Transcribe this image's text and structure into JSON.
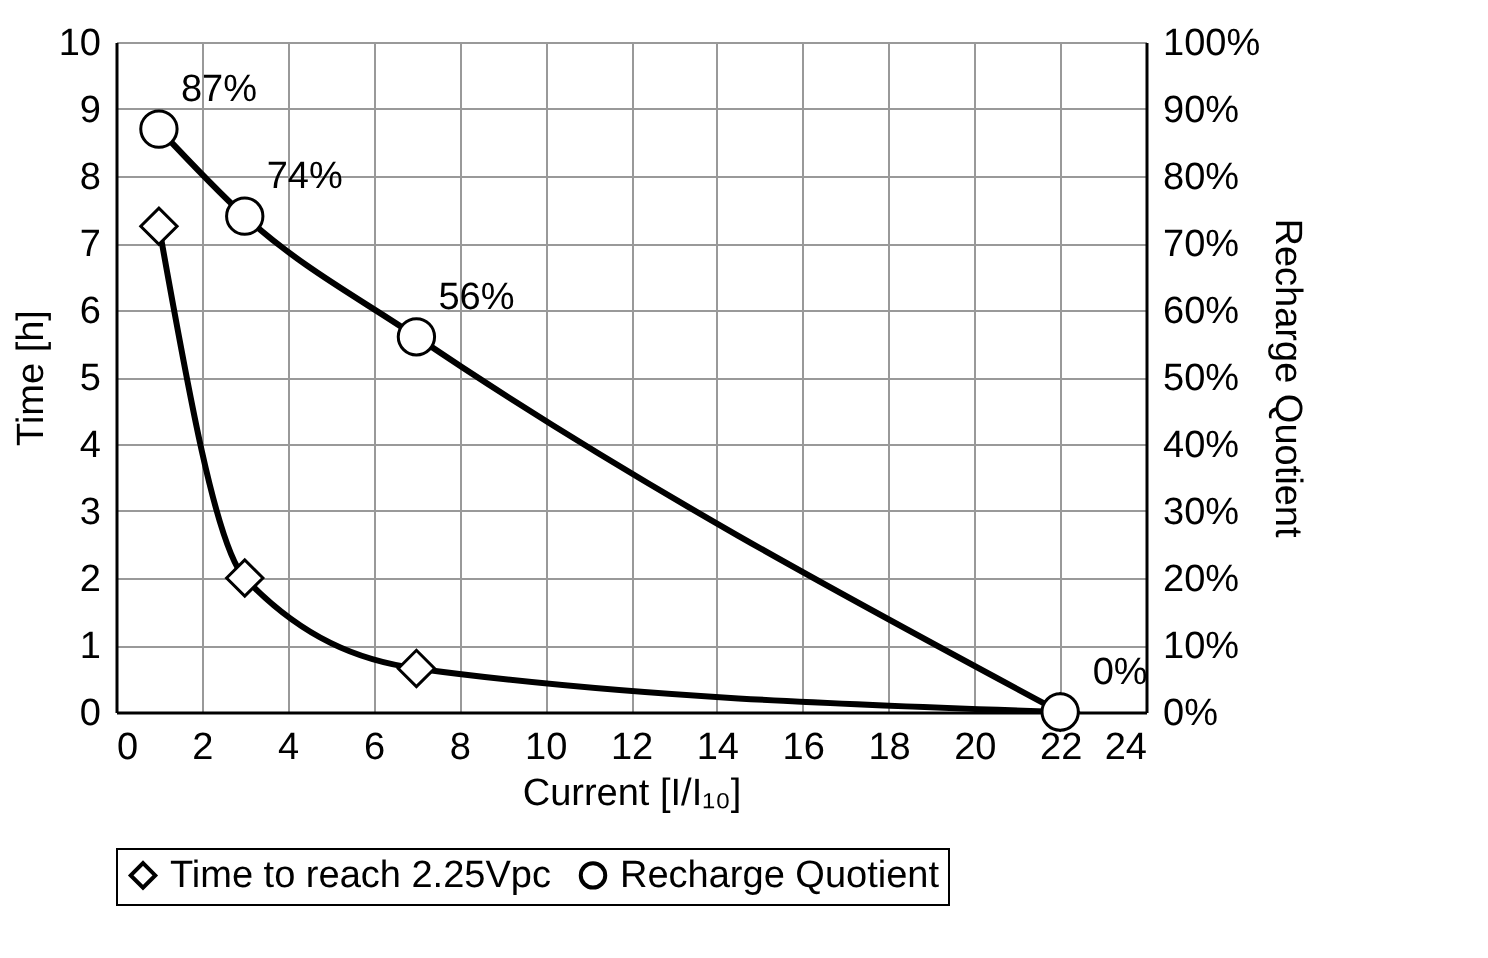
{
  "chart_data": {
    "type": "line",
    "xlabel": "Current [I/I₁₀]",
    "ylabel": "Time [h]",
    "y2label": "Recharge Quotient",
    "x": [
      1,
      3,
      7,
      22
    ],
    "series": [
      {
        "name": "Time to reach 2.25Vpc",
        "color": "#000000",
        "marker": "diamond",
        "values": [
          7.25,
          2.0,
          0.65,
          0.0
        ]
      },
      {
        "name": "Recharge Quotient",
        "color": "#000000",
        "marker": "circle",
        "axis": "y2",
        "values": [
          87,
          74,
          56,
          0
        ],
        "value_labels": [
          "87%",
          "74%",
          "56%",
          "0%"
        ]
      }
    ],
    "xlim": [
      0,
      24
    ],
    "xticks": [
      0,
      2,
      4,
      6,
      8,
      10,
      12,
      14,
      16,
      18,
      20,
      22,
      24
    ],
    "ylim": [
      0,
      10
    ],
    "yticks": [
      0,
      1,
      2,
      3,
      4,
      5,
      6,
      7,
      8,
      9,
      10
    ],
    "y2lim": [
      0,
      100
    ],
    "y2ticks": [
      {
        "value": 0,
        "label": "0%"
      },
      {
        "value": 10,
        "label": "10%"
      },
      {
        "value": 20,
        "label": "20%"
      },
      {
        "value": 30,
        "label": "30%"
      },
      {
        "value": 40,
        "label": "40%"
      },
      {
        "value": 50,
        "label": "50%"
      },
      {
        "value": 60,
        "label": "60%"
      },
      {
        "value": 70,
        "label": "70%"
      },
      {
        "value": 80,
        "label": "80%"
      },
      {
        "value": 90,
        "label": "90%"
      },
      {
        "value": 100,
        "label": "100%"
      }
    ],
    "grid": true,
    "legend": "bottom",
    "line_style": "solid"
  }
}
